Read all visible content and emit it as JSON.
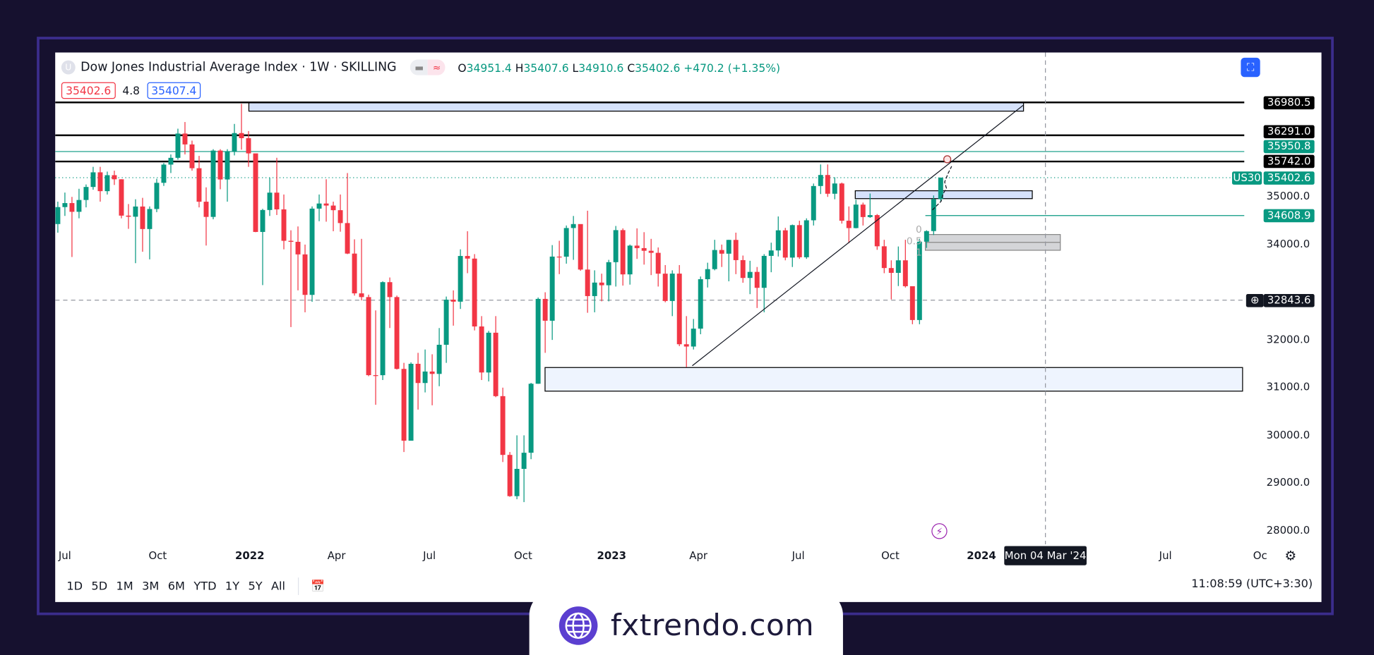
{
  "header": {
    "symbol_initial": "U",
    "title": "Dow Jones Industrial Average Index · 1W · SKILLING",
    "ohlc": {
      "o_label": "O",
      "o": "34951.4",
      "h_label": "H",
      "h": "35407.6",
      "l_label": "L",
      "l": "34910.6",
      "c_label": "C",
      "c": "35402.6",
      "change": "+470.2 (+1.35%)"
    }
  },
  "row2": {
    "bid": "35402.6",
    "spread": "4.8",
    "ask": "35407.4"
  },
  "colors": {
    "up": "#089981",
    "down": "#f23645",
    "accent": "#2962ff",
    "zone": "#d6e2fb",
    "frame": "#3b2d8c",
    "background": "#16112f"
  },
  "price_axis": {
    "ticks": [
      "35000.0",
      "34000.0",
      "32000.0",
      "31000.0",
      "30000.0",
      "29000.0",
      "28000.0"
    ],
    "tags": [
      {
        "value": "36980.5",
        "style": "black"
      },
      {
        "value": "36291.0",
        "style": "black"
      },
      {
        "value": "35950.8",
        "style": "green"
      },
      {
        "value": "35742.0",
        "style": "black"
      },
      {
        "value": "35402.6",
        "style": "green",
        "symbol": "US30"
      },
      {
        "value": "34608.9",
        "style": "green"
      },
      {
        "value": "32843.6",
        "style": "crosshair"
      }
    ]
  },
  "time_axis": {
    "ticks": [
      {
        "label": "Jul",
        "bold": false
      },
      {
        "label": "Oct",
        "bold": false
      },
      {
        "label": "2022",
        "bold": true
      },
      {
        "label": "Apr",
        "bold": false
      },
      {
        "label": "Jul",
        "bold": false
      },
      {
        "label": "Oct",
        "bold": false
      },
      {
        "label": "2023",
        "bold": true
      },
      {
        "label": "Apr",
        "bold": false
      },
      {
        "label": "Jul",
        "bold": false
      },
      {
        "label": "Oct",
        "bold": false
      },
      {
        "label": "2024",
        "bold": true
      },
      {
        "label": "Jul",
        "bold": false
      },
      {
        "label": "Oc",
        "bold": false
      }
    ],
    "crosshair_date": "Mon 04 Mar '24"
  },
  "fib_labels": [
    "0",
    "0.5",
    "1"
  ],
  "toolbar": {
    "ranges": [
      "1D",
      "5D",
      "1M",
      "3M",
      "6M",
      "YTD",
      "1Y",
      "5Y",
      "All"
    ],
    "clock": "11:08:59 (UTC+3:30)"
  },
  "brand": {
    "name": "fxtrendo.com"
  },
  "chart_data": {
    "type": "candlestick",
    "interval": "1W",
    "first_week": "2021-06-28",
    "ylim": [
      27800,
      37200
    ],
    "first_open": 34430,
    "close": [
      34786,
      34870,
      34687,
      34935,
      35208,
      35515,
      35120,
      35455,
      35369,
      34607,
      34584,
      34798,
      34326,
      34746,
      35295,
      35677,
      35819,
      36328,
      36100,
      35601,
      34899,
      34580,
      35971,
      35365,
      35950,
      36338,
      36231,
      35912,
      34265,
      34725,
      35089,
      34738,
      34079,
      34058,
      33794,
      32945,
      34754,
      34861,
      34818,
      34721,
      34451,
      33811,
      32977,
      32899,
      31262,
      31261,
      33212,
      32899,
      31393,
      29888,
      31500,
      31097,
      31338,
      31288,
      31899,
      32845,
      32803,
      33761,
      33706,
      32283,
      31318,
      32152,
      30822,
      29590,
      28725,
      29297,
      29635,
      31082,
      32861,
      32403,
      33748,
      33746,
      34347,
      34430,
      33476,
      32920,
      33203,
      33147,
      33631,
      34303,
      33375,
      33978,
      33926,
      33870,
      33827,
      33390,
      32817,
      33391,
      31910,
      31862,
      32237,
      33274,
      33485,
      33886,
      33809,
      34098,
      33674,
      33300,
      33427,
      33093,
      33763,
      33877,
      34299,
      33727,
      34408,
      33734,
      34509,
      35228,
      35459,
      35066,
      35281,
      34500,
      34346,
      34838,
      34577,
      34618,
      33964,
      33508,
      33407,
      33670,
      33127,
      32418,
      34061,
      34283,
      34951.4,
      35402.6
    ],
    "high": [
      34900,
      35090,
      35000,
      35170,
      35260,
      35630,
      35630,
      35530,
      35550,
      35370,
      34850,
      34950,
      34980,
      34800,
      35380,
      35710,
      35890,
      36430,
      36570,
      36180,
      35860,
      35200,
      36000,
      36000,
      36000,
      36530,
      36950,
      36380,
      35800,
      34750,
      35400,
      35820,
      35050,
      34300,
      34380,
      34000,
      34800,
      35050,
      35370,
      34900,
      35050,
      35500,
      34110,
      34120,
      32950,
      32620,
      33230,
      33310,
      32930,
      31520,
      31530,
      31730,
      31800,
      31700,
      32250,
      32910,
      33040,
      33900,
      34280,
      33800,
      32500,
      32190,
      32500,
      31000,
      29650,
      30000,
      30000,
      31100,
      32890,
      33000,
      33990,
      34080,
      34400,
      34600,
      34420,
      34710,
      33460,
      33390,
      33680,
      34390,
      34340,
      34000,
      34340,
      34260,
      34120,
      33940,
      33570,
      33460,
      33570,
      32500,
      32440,
      33330,
      33620,
      34100,
      34000,
      34100,
      34250,
      33770,
      33660,
      33530,
      33800,
      34040,
      34590,
      34350,
      34420,
      34500,
      34550,
      35280,
      35680,
      35680,
      35410,
      35300,
      34800,
      34940,
      34880,
      35070,
      34640,
      34100,
      33670,
      33960,
      34100,
      33100,
      34120,
      34300,
      35030,
      35407.6
    ],
    "low": [
      34250,
      34600,
      33740,
      34550,
      34780,
      35150,
      34900,
      35050,
      35250,
      34550,
      34330,
      33610,
      33850,
      33690,
      34680,
      35230,
      35500,
      35780,
      35890,
      35550,
      34780,
      33980,
      34530,
      35160,
      34900,
      35870,
      35990,
      35630,
      34260,
      33150,
      34600,
      34620,
      33900,
      32270,
      33040,
      32580,
      32800,
      34490,
      34480,
      34280,
      34270,
      33800,
      32930,
      32830,
      31240,
      30640,
      31160,
      32250,
      31380,
      29650,
      29960,
      30540,
      30900,
      30630,
      31030,
      31520,
      32300,
      32650,
      33400,
      32200,
      31160,
      31130,
      30800,
      29440,
      28710,
      28660,
      28600,
      29500,
      31080,
      31730,
      32000,
      33380,
      33600,
      33680,
      33450,
      32570,
      32580,
      32810,
      32810,
      33120,
      33140,
      33160,
      33700,
      33580,
      33360,
      33120,
      32790,
      32500,
      31870,
      31430,
      31800,
      32120,
      33100,
      33460,
      33530,
      33230,
      33380,
      33200,
      32960,
      32670,
      32580,
      33420,
      33750,
      33670,
      33530,
      33700,
      33700,
      34400,
      35060,
      35000,
      34950,
      34440,
      34030,
      34340,
      34400,
      34560,
      33890,
      33400,
      32850,
      33130,
      33100,
      32330,
      32330,
      33930,
      34200,
      34910.6
    ]
  }
}
